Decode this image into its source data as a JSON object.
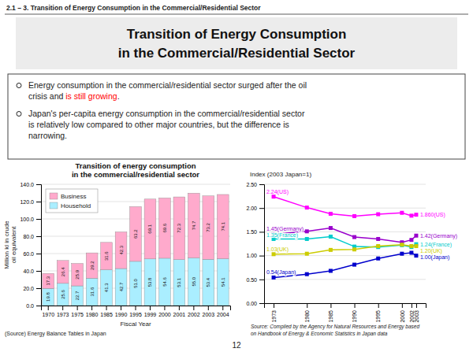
{
  "subtitle": "2.1 – 3. Transition of Energy Consumption in the Commercial/Residential Sector",
  "title": "Transition of Energy Consumption\nin the Commercial/Residential Sector",
  "annotations": [
    {
      "text": "Energy consumption in the commercial/residential sector surged after the oil\ncrisis and "
    },
    {
      "text": "is still growing",
      "color": "red"
    },
    {
      "text": "."
    },
    {
      "text": "Japan's per-capita energy consumption in the commercial/residential sector\nis relatively low compared to other major countries, but the difference is\nnarrowing."
    },
    {
      "text": "12"
    }
  ],
  "chart_data": [
    {
      "type": "bar",
      "stacked": true,
      "title": "Transition of energy consumption\nin the commercial/residential sector",
      "ylabel": "Million kl in crude\noil equivalent",
      "xlabel": "Fiscal Year",
      "categories": [
        1970,
        1973,
        1975,
        1980,
        1985,
        1990,
        1995,
        1999,
        2000,
        2001,
        2002,
        2003,
        2004
      ],
      "series": [
        {
          "name": "Household",
          "color": "#aaeeff",
          "values": [
            19.8,
            25.6,
            22.7,
            31.6,
            41.3,
            42.7,
            51.0,
            53.8,
            54.6,
            53.1,
            55.0,
            53.4,
            54.1
          ],
          "value_labels": [
            "19.8",
            "25.6",
            "22.7",
            "31.6",
            "41.3",
            "42.7",
            "51.0",
            "53.8",
            "54.6",
            "53.1",
            "55.0",
            "53.4",
            "54.1"
          ]
        },
        {
          "name": "Business",
          "color": "#ffaacc",
          "values": [
            17.3,
            26.4,
            25.9,
            29.2,
            31.6,
            42.3,
            63.2,
            69.1,
            69.6,
            72.3,
            74.7,
            73.2,
            74.1
          ]
        }
      ],
      "ylim": [
        0,
        140
      ],
      "yticks": [
        {
          "value": 0,
          "label": "0.0"
        },
        {
          "value": 20,
          "label": "20.0"
        },
        {
          "value": 40,
          "label": "40.0"
        },
        {
          "value": 60,
          "label": "60.0"
        },
        {
          "value": 80,
          "label": "80.0"
        },
        {
          "value": 100,
          "label": "100.0"
        },
        {
          "value": 120,
          "label": "120.0"
        },
        {
          "value": 140,
          "label": "140.0"
        }
      ],
      "grid": true,
      "legend": "upper left",
      "data_labels": true,
      "annotations": [
        {
          "text": "(Source) Energy Balance Tables in Japan"
        }
      ]
    },
    {
      "type": "line",
      "ylabel": "Index (2003 Japan=1)",
      "x": [
        1973,
        1980,
        1985,
        1990,
        1995,
        2000,
        2002,
        2003
      ],
      "xlim": [
        1971,
        2005
      ],
      "xticks": [
        1973,
        1980,
        1985,
        1990,
        1995,
        2000,
        2002,
        2003
      ],
      "ylim": [
        0,
        2.5
      ],
      "yticks": [
        {
          "value": 0,
          "label": "0.00"
        },
        {
          "value": 0.5,
          "label": "0.50"
        },
        {
          "value": 1,
          "label": "1.00"
        },
        {
          "value": 1.5,
          "label": "1.50"
        },
        {
          "value": 2,
          "label": "2.00"
        },
        {
          "value": 2.5,
          "label": "2.50"
        }
      ],
      "grid": true,
      "marker": "square",
      "data_labels": true,
      "series": [
        {
          "color": "#ff00ff",
          "values": [
            2.24,
            2.01,
            1.88,
            1.83,
            1.87,
            1.9,
            1.84,
            1.86
          ],
          "value_labels": [
            "2.24(US)",
            null,
            null,
            null,
            null,
            null,
            null,
            "1.860(US)"
          ]
        },
        {
          "color": "#9900cc",
          "values": [
            1.45,
            1.51,
            1.58,
            1.39,
            1.35,
            1.28,
            1.33,
            1.42
          ],
          "value_labels": [
            "1.45(Germany)",
            null,
            null,
            null,
            null,
            null,
            null,
            "1.42(Germany)"
          ]
        },
        {
          "color": "#00cccc",
          "values": [
            1.35,
            1.35,
            1.4,
            1.19,
            1.18,
            1.22,
            1.18,
            1.24
          ],
          "value_labels": [
            "1.35(France)",
            null,
            null,
            null,
            null,
            null,
            null,
            "1.24(France)"
          ]
        },
        {
          "color": "#cccc00",
          "values": [
            1.03,
            1.04,
            1.12,
            1.13,
            1.2,
            1.23,
            1.2,
            1.2
          ],
          "value_labels": [
            "1.03(UK)",
            null,
            null,
            null,
            null,
            null,
            null,
            "1.20(UK)"
          ]
        },
        {
          "color": "#0000cc",
          "values": [
            0.54,
            0.61,
            0.68,
            0.81,
            0.94,
            1.04,
            1.06,
            1.0
          ],
          "value_labels": [
            "0.54(Japan)",
            null,
            null,
            null,
            null,
            null,
            null,
            "1.00(Japan)"
          ]
        }
      ],
      "annotations": [
        {
          "text": "Source: Compiled by the Agency for Natural Resources and Energy based\non Handbook of Energy & Economic Statistics in Japan data"
        }
      ]
    }
  ]
}
